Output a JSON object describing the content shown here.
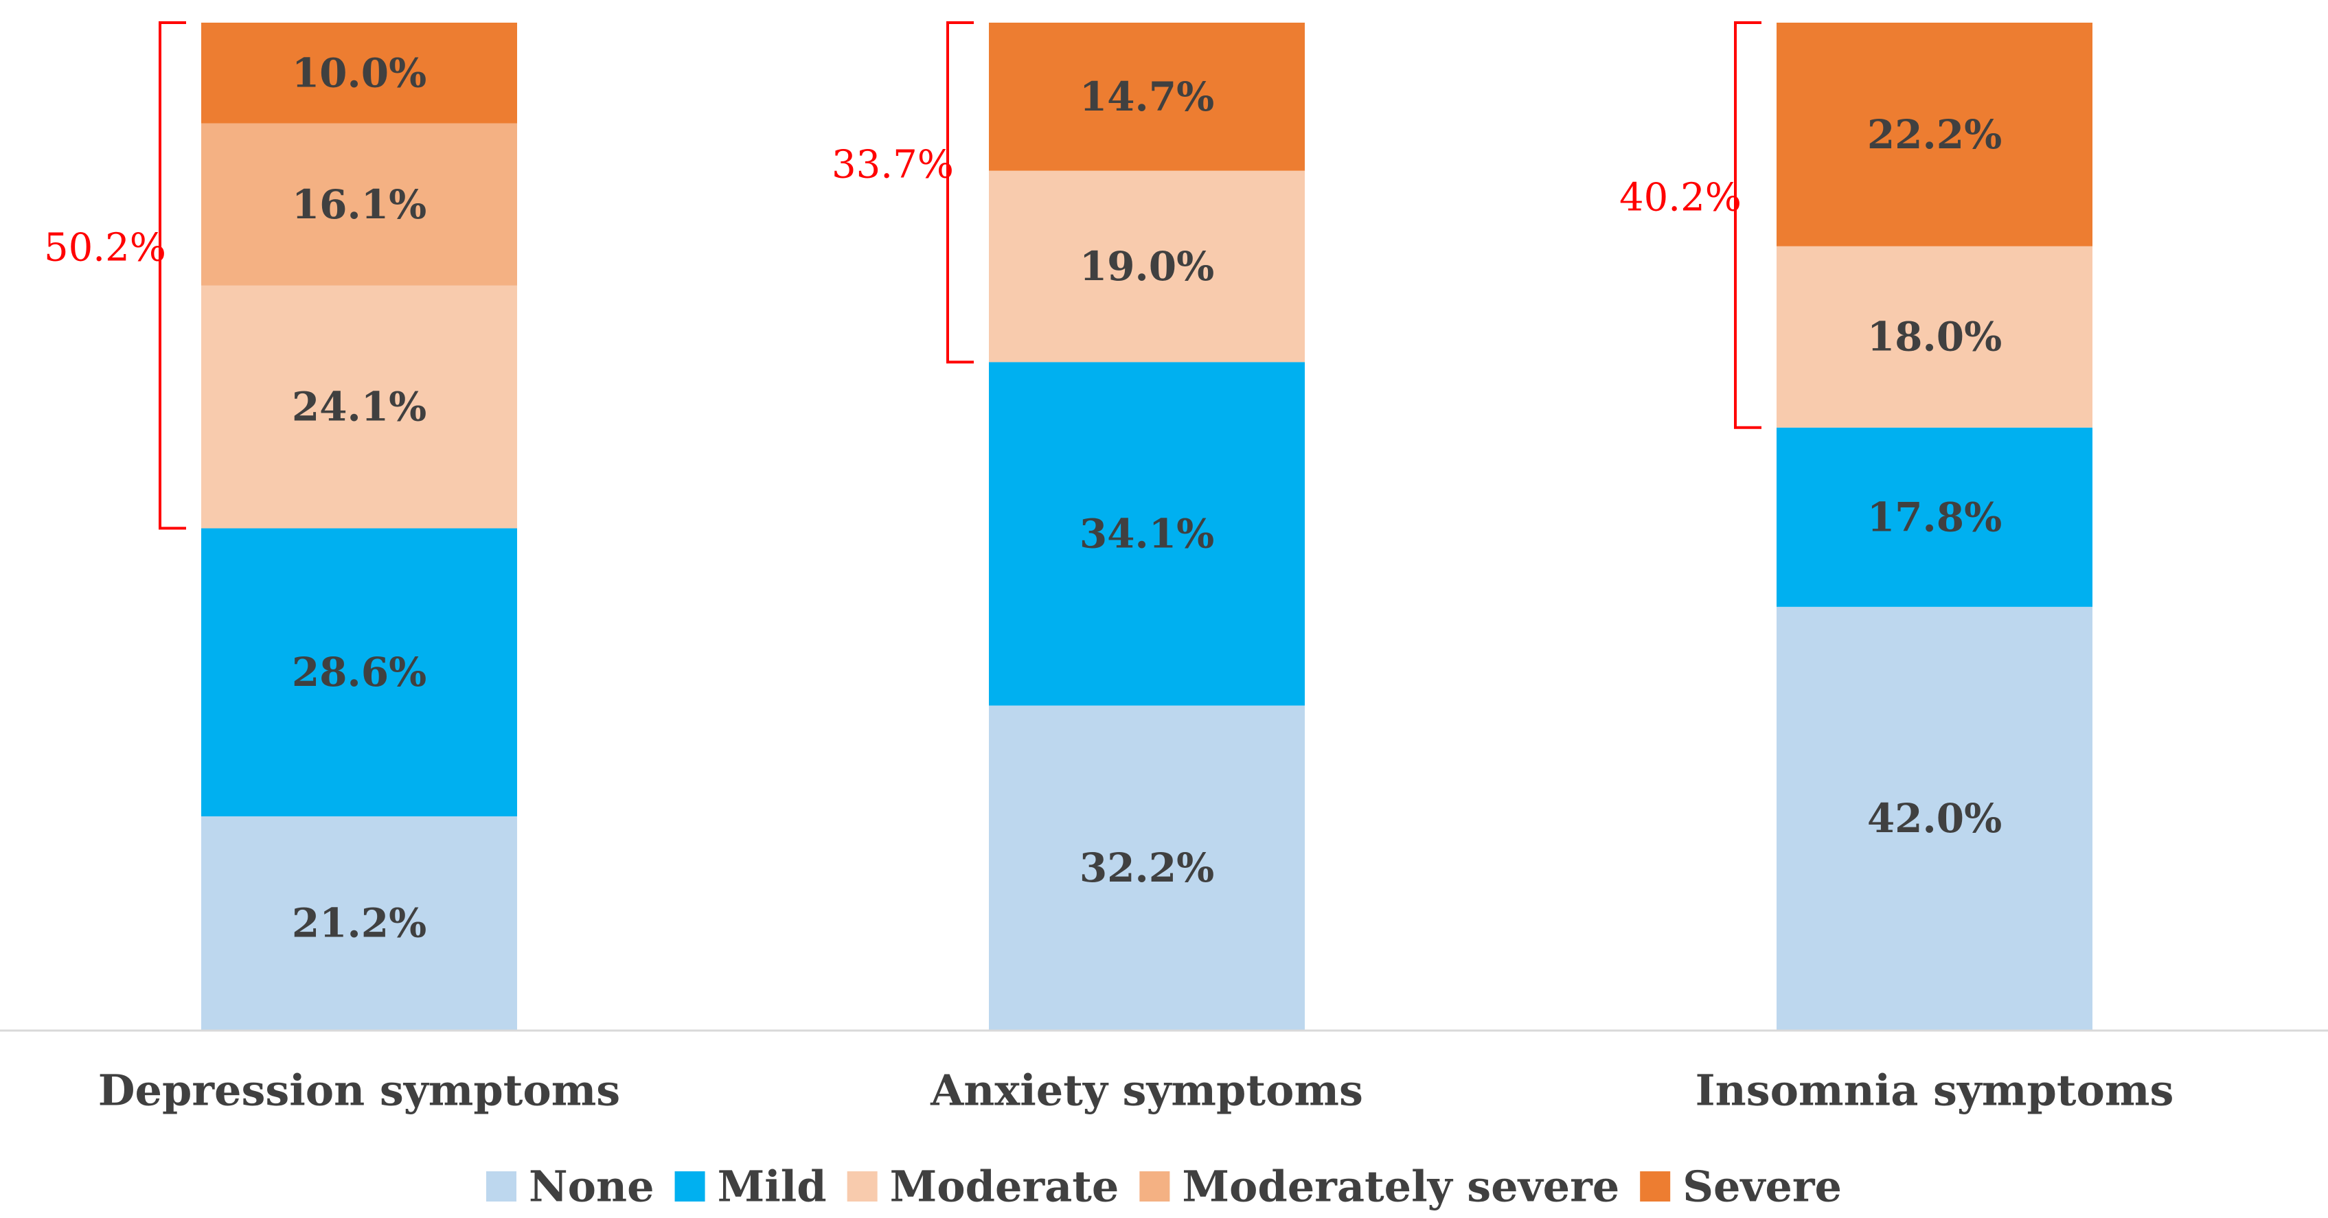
{
  "chart_data": {
    "type": "bar",
    "stacked": true,
    "normalized": true,
    "title": "",
    "xlabel": "",
    "ylabel": "",
    "ylim": [
      0,
      100
    ],
    "grid": false,
    "legend_position": "bottom",
    "categories": [
      "Depression symptoms",
      "Anxiety symptoms",
      "Insomnia symptoms"
    ],
    "series": [
      {
        "name": "None",
        "color": "#bdd7ee",
        "values": [
          21.2,
          32.2,
          42.0
        ],
        "labels": [
          "21.2%",
          "32.2%",
          "42.0%"
        ]
      },
      {
        "name": "Mild",
        "color": "#00b0f0",
        "values": [
          28.6,
          34.1,
          17.8
        ],
        "labels": [
          "28.6%",
          "34.1%",
          "17.8%"
        ]
      },
      {
        "name": "Moderate",
        "color": "#f8cbad",
        "values": [
          24.1,
          19.0,
          18.0
        ],
        "labels": [
          "24.1%",
          "19.0%",
          "18.0%"
        ]
      },
      {
        "name": "Moderately severe",
        "color": "#f4b183",
        "values": [
          16.1,
          0,
          0
        ],
        "labels": [
          "16.1%",
          "",
          ""
        ]
      },
      {
        "name": "Severe",
        "color": "#ed7d31",
        "values": [
          10.0,
          14.7,
          22.2
        ],
        "labels": [
          "10.0%",
          "14.7%",
          "22.2%"
        ]
      }
    ],
    "annotations": [
      {
        "category": "Depression symptoms",
        "text": "50.2%",
        "from_series": "Moderate",
        "to_series": "Severe"
      },
      {
        "category": "Anxiety symptoms",
        "text": "33.7%",
        "from_series": "Moderate",
        "to_series": "Severe"
      },
      {
        "category": "Insomnia symptoms",
        "text": "40.2%",
        "from_series": "Moderate",
        "to_series": "Severe"
      }
    ],
    "annotation_color": "#ff0000",
    "axis_color": "#d9d9d9",
    "label_color": "#404040"
  }
}
